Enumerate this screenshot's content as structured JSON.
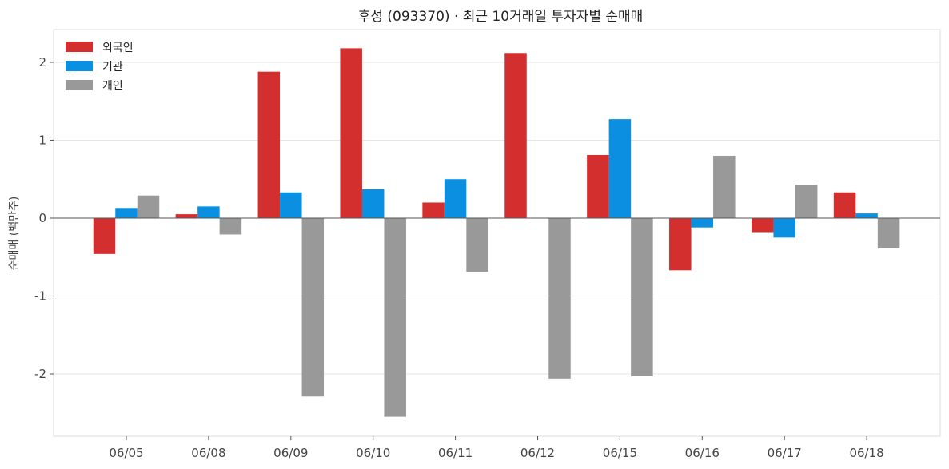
{
  "chart_data": {
    "type": "bar",
    "title": "후성 (093370) · 최근 10거래일 투자자별 순매매",
    "xlabel": "",
    "ylabel": "순매매 (백만주)",
    "categories": [
      "06/05",
      "06/08",
      "06/09",
      "06/10",
      "06/11",
      "06/12",
      "06/15",
      "06/16",
      "06/17",
      "06/18"
    ],
    "series": [
      {
        "name": "외국인",
        "color": "#d32f2f",
        "values": [
          -0.46,
          0.05,
          1.88,
          2.18,
          0.2,
          2.12,
          0.81,
          -0.67,
          -0.18,
          0.33
        ]
      },
      {
        "name": "기관",
        "color": "#0b8fe0",
        "values": [
          0.13,
          0.15,
          0.33,
          0.37,
          0.5,
          0.0,
          1.27,
          -0.12,
          -0.25,
          0.06
        ]
      },
      {
        "name": "개인",
        "color": "#999999",
        "values": [
          0.29,
          -0.21,
          -2.29,
          -2.55,
          -0.69,
          -2.06,
          -2.03,
          0.8,
          0.43,
          -0.39
        ]
      }
    ],
    "yticks": [
      "-2",
      "-1",
      "0",
      "1",
      "2"
    ],
    "ylim": [
      -2.8,
      2.42
    ],
    "grid": true,
    "legend_position": "top-left"
  }
}
